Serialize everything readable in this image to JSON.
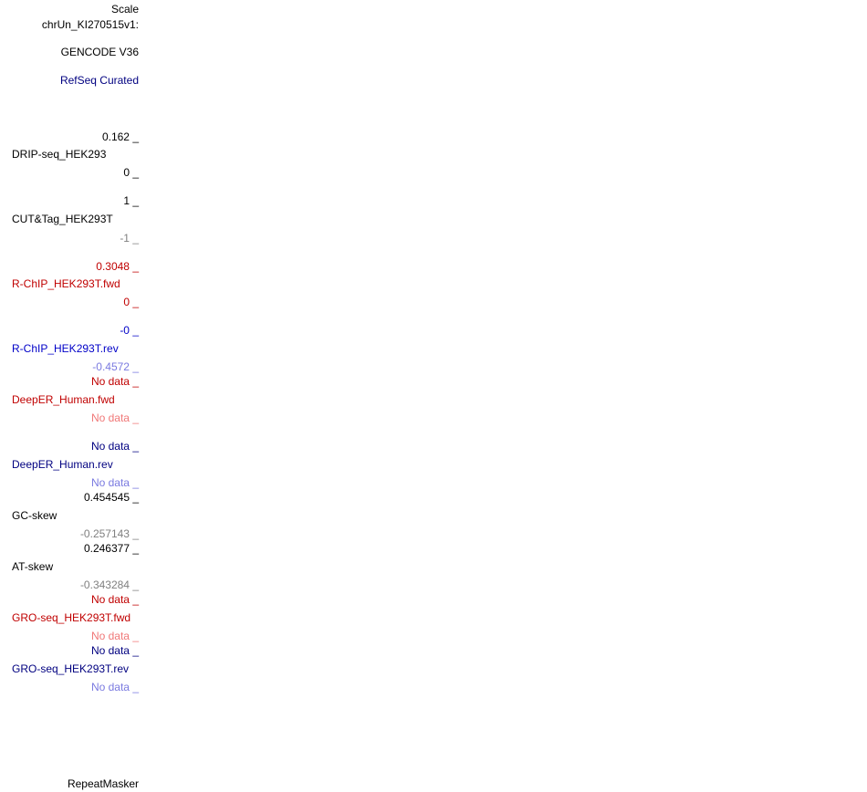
{
  "labels": [
    "Scale",
    "chrUn_KI270515v1:",
    "GENCODE V36",
    "RefSeq Curated",
    "0.162 _",
    "DRIP-seq_HEK293",
    "0 _",
    "1 _",
    "CUT&Tag_HEK293T",
    "-1 _",
    "0.3048 _",
    "R-ChIP_HEK293T.fwd",
    "0 _",
    "-0 _",
    "R-ChIP_HEK293T.rev",
    "-0.4572 _",
    "No data _",
    "DeepER_Human.fwd",
    "No data _",
    "No data _",
    "DeepER_Human.rev",
    "No data _",
    "0.454545 _",
    "GC-skew",
    "-0.257143 _",
    "0.246377 _",
    "AT-skew",
    "-0.343284 _",
    "No data _",
    "GRO-seq_HEK293T.fwd",
    "No data _",
    "No data _",
    "GRO-seq_HEK293T.rev",
    "No data _",
    "RepeatMasker"
  ]
}
